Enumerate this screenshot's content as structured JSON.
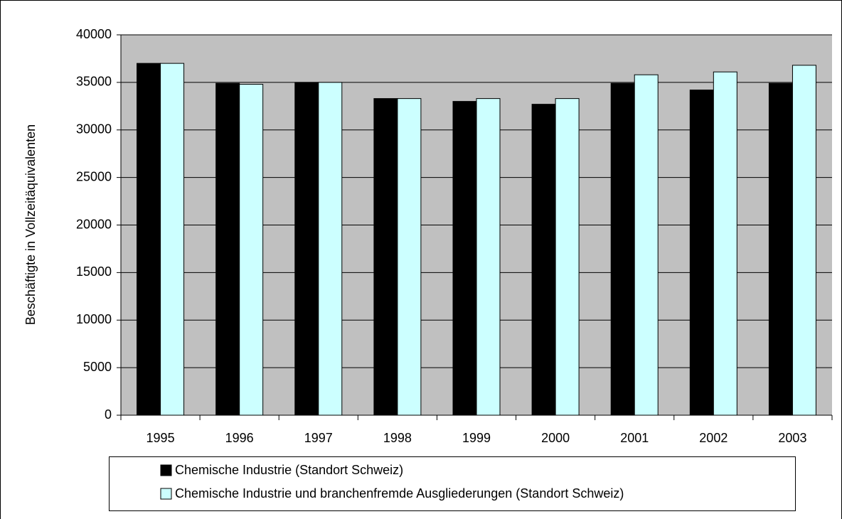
{
  "chart_data": {
    "type": "bar",
    "y_label": "Beschäftigte in Vollzeitäquivalenten",
    "categories": [
      "1995",
      "1996",
      "1997",
      "1998",
      "1999",
      "2000",
      "2001",
      "2002",
      "2003"
    ],
    "series": [
      {
        "name": "Chemische Industrie (Standort Schweiz)",
        "color": "#000000",
        "values": [
          37000,
          34900,
          35000,
          33300,
          33000,
          32700,
          34900,
          34200,
          34900
        ]
      },
      {
        "name": "Chemische Industrie und branchenfremde Ausgliederungen (Standort Schweiz)",
        "color": "#ccffff",
        "values": [
          37000,
          34800,
          35000,
          33300,
          33300,
          33300,
          35800,
          36100,
          36800
        ]
      }
    ],
    "ylim": [
      0,
      40000
    ],
    "yticks": [
      0,
      5000,
      10000,
      15000,
      20000,
      25000,
      30000,
      35000,
      40000
    ],
    "grid": true,
    "legend": "bottom"
  }
}
